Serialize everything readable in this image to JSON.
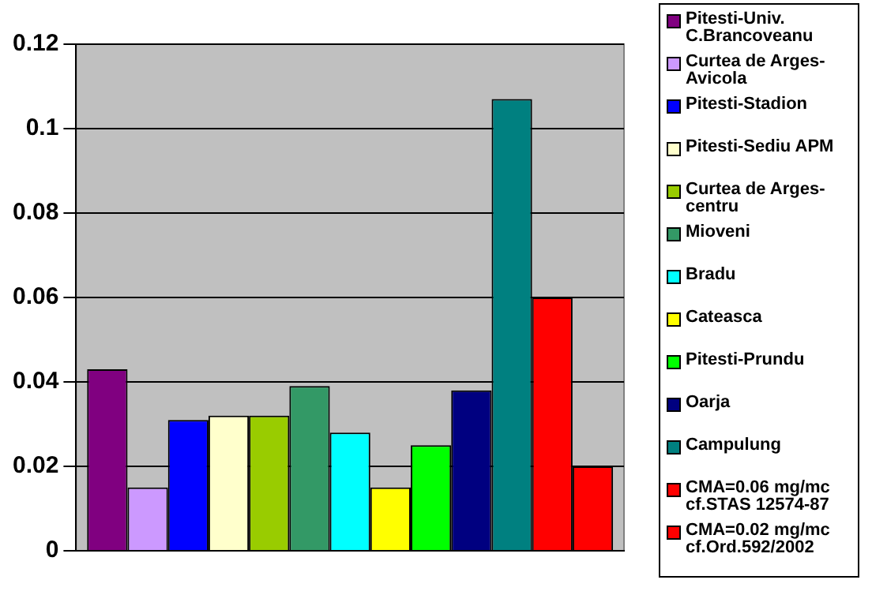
{
  "chart_data": {
    "type": "bar",
    "categories": [
      null
    ],
    "series": [
      {
        "name": "Pitesti-Univ. C.Brancoveanu",
        "color": "#800080",
        "values": [
          0.043
        ]
      },
      {
        "name": "Curtea de Arges-Avicola",
        "color": "#cc99ff",
        "values": [
          0.015
        ]
      },
      {
        "name": "Pitesti-Stadion",
        "color": "#0000ff",
        "values": [
          0.031
        ]
      },
      {
        "name": "Pitesti-Sediu APM",
        "color": "#ffffcc",
        "values": [
          0.032
        ]
      },
      {
        "name": "Curtea de Arges-centru",
        "color": "#99cc00",
        "values": [
          0.032
        ]
      },
      {
        "name": "Mioveni",
        "color": "#339966",
        "values": [
          0.039
        ]
      },
      {
        "name": "Bradu",
        "color": "#00ffff",
        "values": [
          0.028
        ]
      },
      {
        "name": "Cateasca",
        "color": "#ffff00",
        "values": [
          0.015
        ]
      },
      {
        "name": "Pitesti-Prundu",
        "color": "#00ff00",
        "values": [
          0.025
        ]
      },
      {
        "name": "Oarja",
        "color": "#000080",
        "values": [
          0.038
        ]
      },
      {
        "name": "Campulung",
        "color": "#008080",
        "values": [
          0.107
        ]
      },
      {
        "name": "CMA=0.06 mg/mc cf.STAS 12574-87",
        "color": "#ff0000",
        "values": [
          0.06
        ]
      },
      {
        "name": "CMA=0.02 mg/mc cf.Ord.592/2002",
        "color": "#ff0000",
        "values": [
          0.02
        ]
      }
    ],
    "ylim": [
      0,
      0.12
    ],
    "yticks": [
      0,
      0.02,
      0.04,
      0.06,
      0.08,
      0.1,
      0.12
    ],
    "grid": "y",
    "legend": "right",
    "tick_labels": "y"
  }
}
